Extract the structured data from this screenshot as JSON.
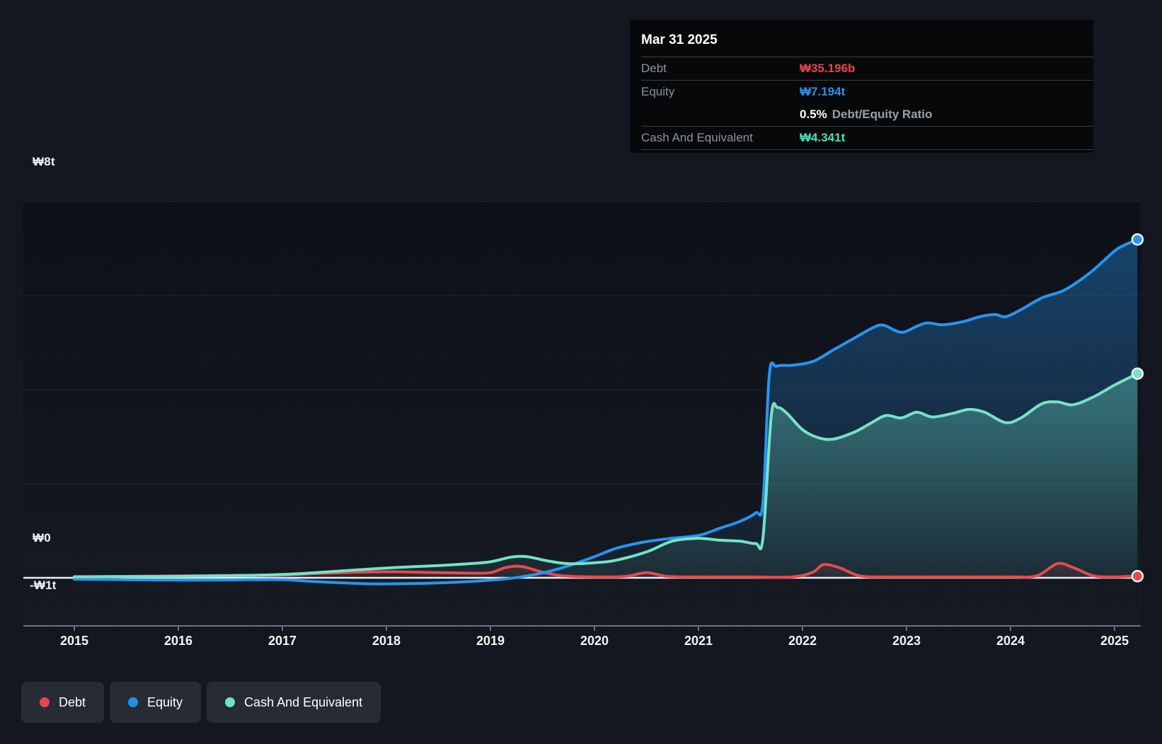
{
  "tooltip": {
    "date": "Mar 31 2025",
    "debt_label": "Debt",
    "debt_value": "₩35.196b",
    "equity_label": "Equity",
    "equity_value": "₩7.194t",
    "ratio_value": "0.5%",
    "ratio_label": "Debt/Equity Ratio",
    "cash_label": "Cash And Equivalent",
    "cash_value": "₩4.341t"
  },
  "legend": {
    "items": [
      {
        "label": "Debt",
        "color": "#e2484d"
      },
      {
        "label": "Equity",
        "color": "#2191e8"
      },
      {
        "label": "Cash And Equivalent",
        "color": "#6fe3c4"
      }
    ]
  },
  "colors": {
    "debt": "#e5494f",
    "equity": "#2695f0",
    "cash": "#74e3c6",
    "tooltip_debt": "#e8444b",
    "tooltip_equity": "#2693f3",
    "tooltip_cash": "#3fe2c4",
    "zero_line": "#eceff3",
    "gridline": "#232830",
    "axis_line": "#6c717a"
  },
  "chart_data": {
    "type": "area",
    "title": "",
    "xlabel": "",
    "ylabel": "",
    "x_unit": "year",
    "ylim": [
      -1,
      8
    ],
    "x_ticks": [
      2015,
      2016,
      2017,
      2018,
      2019,
      2020,
      2021,
      2022,
      2023,
      2024,
      2025
    ],
    "y_gridline_values": [
      8,
      6,
      4,
      2
    ],
    "y_tick_labels": [
      {
        "value": 8,
        "label": "₩8t"
      },
      {
        "value": 0,
        "label": "₩0"
      },
      {
        "value": -1,
        "label": "-₩1t"
      }
    ],
    "value_unit": "trillion KRW",
    "legend_position": "bottom-left",
    "series": [
      {
        "name": "Debt",
        "color": "#e5494f",
        "points": [
          [
            2015.0,
            0.025
          ],
          [
            2015.5,
            0.03
          ],
          [
            2016.0,
            0.04
          ],
          [
            2016.5,
            0.05
          ],
          [
            2017.0,
            0.06
          ],
          [
            2017.3,
            0.09
          ],
          [
            2017.6,
            0.11
          ],
          [
            2018.0,
            0.13
          ],
          [
            2018.4,
            0.115
          ],
          [
            2018.8,
            0.1
          ],
          [
            2019.0,
            0.11
          ],
          [
            2019.15,
            0.22
          ],
          [
            2019.3,
            0.24
          ],
          [
            2019.5,
            0.12
          ],
          [
            2019.7,
            0.04
          ],
          [
            2020.0,
            0.02
          ],
          [
            2020.3,
            0.03
          ],
          [
            2020.5,
            0.11
          ],
          [
            2020.7,
            0.03
          ],
          [
            2021.0,
            0.02
          ],
          [
            2021.5,
            0.02
          ],
          [
            2021.9,
            0.02
          ],
          [
            2022.1,
            0.12
          ],
          [
            2022.2,
            0.28
          ],
          [
            2022.35,
            0.22
          ],
          [
            2022.55,
            0.04
          ],
          [
            2022.8,
            0.02
          ],
          [
            2023.2,
            0.02
          ],
          [
            2023.6,
            0.02
          ],
          [
            2024.0,
            0.02
          ],
          [
            2024.25,
            0.04
          ],
          [
            2024.45,
            0.3
          ],
          [
            2024.6,
            0.22
          ],
          [
            2024.8,
            0.04
          ],
          [
            2025.0,
            0.02
          ],
          [
            2025.22,
            0.035
          ]
        ]
      },
      {
        "name": "Equity",
        "color": "#2695f0",
        "points": [
          [
            2015.0,
            -0.03
          ],
          [
            2015.5,
            -0.04
          ],
          [
            2016.0,
            -0.05
          ],
          [
            2016.5,
            -0.045
          ],
          [
            2017.0,
            -0.04
          ],
          [
            2017.3,
            -0.08
          ],
          [
            2017.6,
            -0.11
          ],
          [
            2017.9,
            -0.13
          ],
          [
            2018.2,
            -0.125
          ],
          [
            2018.5,
            -0.11
          ],
          [
            2018.8,
            -0.08
          ],
          [
            2019.0,
            -0.05
          ],
          [
            2019.2,
            -0.01
          ],
          [
            2019.45,
            0.08
          ],
          [
            2019.7,
            0.22
          ],
          [
            2020.0,
            0.45
          ],
          [
            2020.2,
            0.62
          ],
          [
            2020.45,
            0.75
          ],
          [
            2020.7,
            0.83
          ],
          [
            2021.0,
            0.9
          ],
          [
            2021.2,
            1.05
          ],
          [
            2021.4,
            1.2
          ],
          [
            2021.55,
            1.38
          ],
          [
            2021.62,
            1.6
          ],
          [
            2021.68,
            4.3
          ],
          [
            2021.75,
            4.5
          ],
          [
            2021.9,
            4.52
          ],
          [
            2022.1,
            4.6
          ],
          [
            2022.3,
            4.85
          ],
          [
            2022.5,
            5.1
          ],
          [
            2022.68,
            5.32
          ],
          [
            2022.78,
            5.37
          ],
          [
            2022.95,
            5.22
          ],
          [
            2023.1,
            5.35
          ],
          [
            2023.2,
            5.42
          ],
          [
            2023.35,
            5.38
          ],
          [
            2023.55,
            5.45
          ],
          [
            2023.7,
            5.55
          ],
          [
            2023.85,
            5.6
          ],
          [
            2023.95,
            5.55
          ],
          [
            2024.1,
            5.7
          ],
          [
            2024.3,
            5.95
          ],
          [
            2024.5,
            6.1
          ],
          [
            2024.65,
            6.3
          ],
          [
            2024.8,
            6.55
          ],
          [
            2025.0,
            6.95
          ],
          [
            2025.1,
            7.08
          ],
          [
            2025.22,
            7.194
          ]
        ]
      },
      {
        "name": "Cash And Equivalent",
        "color": "#74e3c6",
        "points": [
          [
            2015.0,
            0.02
          ],
          [
            2015.5,
            0.025
          ],
          [
            2016.0,
            0.03
          ],
          [
            2016.5,
            0.045
          ],
          [
            2017.0,
            0.07
          ],
          [
            2017.4,
            0.12
          ],
          [
            2017.8,
            0.18
          ],
          [
            2018.1,
            0.22
          ],
          [
            2018.5,
            0.26
          ],
          [
            2018.8,
            0.3
          ],
          [
            2019.0,
            0.34
          ],
          [
            2019.2,
            0.44
          ],
          [
            2019.35,
            0.45
          ],
          [
            2019.55,
            0.36
          ],
          [
            2019.75,
            0.3
          ],
          [
            2020.0,
            0.32
          ],
          [
            2020.2,
            0.37
          ],
          [
            2020.5,
            0.55
          ],
          [
            2020.75,
            0.78
          ],
          [
            2021.0,
            0.84
          ],
          [
            2021.2,
            0.8
          ],
          [
            2021.4,
            0.78
          ],
          [
            2021.55,
            0.73
          ],
          [
            2021.62,
            0.85
          ],
          [
            2021.7,
            3.45
          ],
          [
            2021.76,
            3.62
          ],
          [
            2021.85,
            3.5
          ],
          [
            2022.0,
            3.15
          ],
          [
            2022.15,
            2.98
          ],
          [
            2022.3,
            2.95
          ],
          [
            2022.5,
            3.1
          ],
          [
            2022.65,
            3.28
          ],
          [
            2022.8,
            3.45
          ],
          [
            2022.95,
            3.4
          ],
          [
            2023.1,
            3.52
          ],
          [
            2023.25,
            3.42
          ],
          [
            2023.45,
            3.5
          ],
          [
            2023.6,
            3.58
          ],
          [
            2023.75,
            3.52
          ],
          [
            2023.95,
            3.3
          ],
          [
            2024.1,
            3.4
          ],
          [
            2024.3,
            3.7
          ],
          [
            2024.45,
            3.74
          ],
          [
            2024.6,
            3.68
          ],
          [
            2024.8,
            3.85
          ],
          [
            2025.0,
            4.1
          ],
          [
            2025.22,
            4.341
          ]
        ]
      }
    ]
  }
}
